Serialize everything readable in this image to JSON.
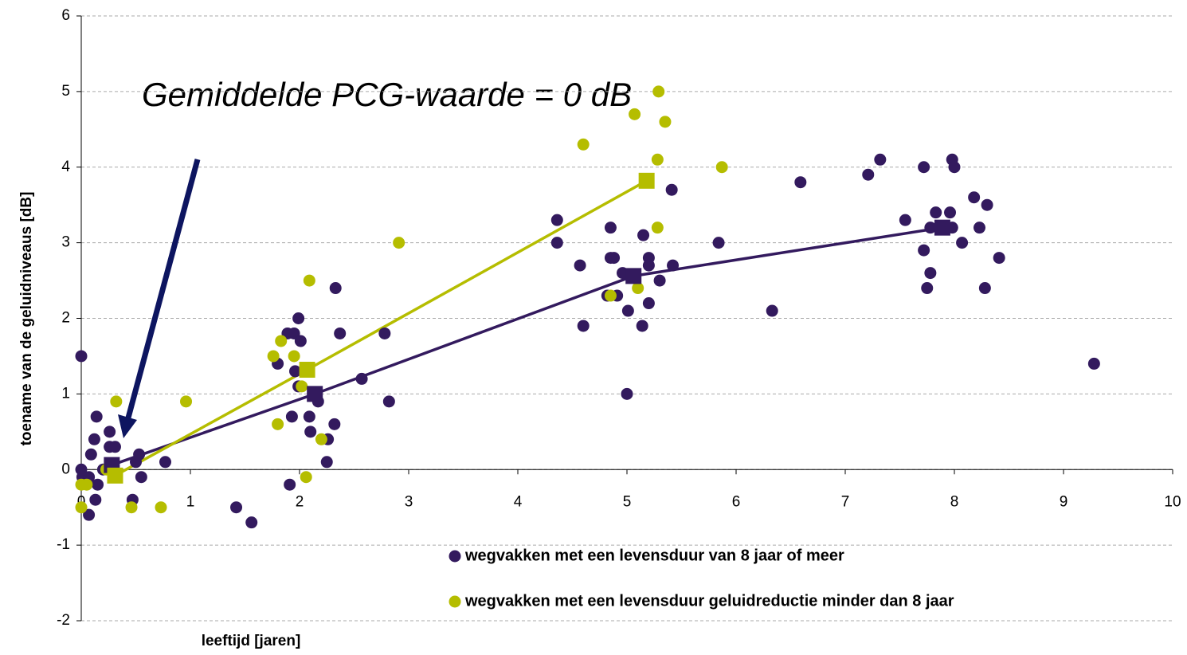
{
  "chart_data": {
    "type": "scatter",
    "annotation": "Gemiddelde PCG-waarde = 0 dB",
    "xlabel": "leeftijd [jaren]",
    "ylabel": "toename van de geluidniveaus [dB]",
    "xlim": [
      0,
      10
    ],
    "xticks": [
      0,
      1,
      2,
      3,
      4,
      5,
      6,
      7,
      8,
      9,
      10
    ],
    "ylim": [
      -2,
      6
    ],
    "yticks": [
      -2,
      -1,
      0,
      1,
      2,
      3,
      4,
      5,
      6
    ],
    "grid": true,
    "legend": "lower right",
    "series": [
      {
        "name": "wegvakken met een levensduur van 8 jaar of meer",
        "color": "#331a5e",
        "x": [
          0,
          0,
          0.01,
          0.07,
          0.07,
          0.09,
          0.12,
          0.14,
          0.15,
          0.13,
          0.2,
          0.26,
          0.26,
          0.31,
          0.47,
          0.5,
          0.53,
          0.55,
          0.77,
          1.42,
          1.56,
          1.8,
          1.89,
          1.91,
          1.93,
          1.95,
          1.96,
          1.99,
          2.01,
          1.99,
          2.09,
          2.1,
          2.17,
          2.26,
          2.25,
          2.32,
          2.33,
          2.37,
          2.57,
          2.78,
          2.82,
          4.36,
          4.36,
          4.57,
          4.6,
          4.85,
          4.85,
          4.88,
          4.82,
          4.91,
          4.96,
          5.01,
          5.0,
          5.14,
          5.15,
          5.2,
          5.2,
          5.2,
          5.3,
          5.41,
          5.42,
          5.84,
          6.33,
          6.59,
          7.21,
          7.32,
          7.55,
          7.72,
          7.72,
          7.75,
          7.78,
          7.78,
          7.83,
          7.96,
          7.98,
          8.0,
          7.98,
          8.07,
          8.18,
          8.23,
          8.3,
          8.28,
          8.41,
          9.28
        ],
        "values": [
          1.5,
          0,
          -0.1,
          -0.1,
          -0.6,
          0.2,
          0.4,
          0.7,
          -0.2,
          -0.4,
          0,
          0.5,
          0.3,
          0.3,
          -0.4,
          0.1,
          0.2,
          -0.1,
          0.1,
          -0.5,
          -0.7,
          1.4,
          1.8,
          -0.2,
          0.7,
          1.8,
          1.3,
          2.0,
          1.7,
          1.1,
          0.7,
          0.5,
          0.9,
          0.4,
          0.1,
          0.6,
          2.4,
          1.8,
          1.2,
          1.8,
          0.9,
          3.3,
          3.0,
          2.7,
          1.9,
          3.2,
          2.8,
          2.8,
          2.3,
          2.3,
          2.6,
          2.1,
          1.0,
          1.9,
          3.1,
          2.8,
          2.7,
          2.2,
          2.5,
          3.7,
          2.7,
          3.0,
          2.1,
          3.8,
          3.9,
          4.1,
          3.3,
          4.0,
          2.9,
          2.4,
          2.6,
          3.2,
          3.4,
          3.4,
          4.1,
          4.0,
          3.2,
          3.0,
          3.6,
          3.2,
          3.5,
          2.4,
          2.8,
          1.4
        ]
      },
      {
        "name": "wegvakken met een levensduur geluidreductie minder dan 8 jaar",
        "color": "#b5bd00",
        "x": [
          0,
          0,
          0.05,
          0.23,
          0.32,
          0.46,
          0.73,
          0.96,
          1.76,
          1.8,
          1.83,
          1.95,
          2.02,
          2.06,
          2.09,
          2.2,
          2.91,
          4.6,
          4.85,
          5.07,
          5.1,
          5.29,
          5.35,
          5.28,
          5.28,
          5.87
        ],
        "values": [
          -0.5,
          -0.2,
          -0.2,
          0,
          0.9,
          -0.5,
          -0.5,
          0.9,
          1.5,
          0.6,
          1.7,
          1.5,
          1.1,
          -0.1,
          2.5,
          0.4,
          3.0,
          4.3,
          2.3,
          4.7,
          2.4,
          5.0,
          4.6,
          4.1,
          3.2,
          4.0
        ]
      },
      {
        "color": "#331a5e",
        "line": true,
        "marker": "square",
        "x": [
          0.28,
          2.14,
          5.06,
          7.89
        ],
        "values": [
          0.06,
          1.0,
          2.56,
          3.2
        ]
      },
      {
        "color": "#b5bd00",
        "line": true,
        "marker": "square",
        "x": [
          0.31,
          2.07,
          5.18
        ],
        "values": [
          -0.08,
          1.32,
          3.82
        ]
      }
    ]
  }
}
